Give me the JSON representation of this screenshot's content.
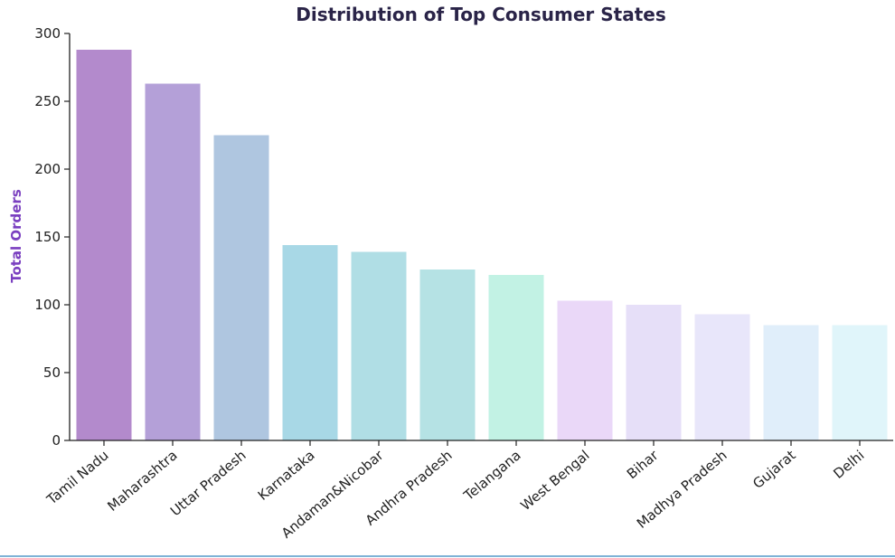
{
  "chart_data": {
    "type": "bar",
    "title": "Distribution of Top Consumer States",
    "xlabel": "",
    "ylabel": "Total Orders",
    "ylim": [
      0,
      300
    ],
    "yticks": [
      0,
      50,
      100,
      150,
      200,
      250,
      300
    ],
    "categories": [
      "Tamil Nadu",
      "Maharashtra",
      "Uttar Pradesh",
      "Karnataka",
      "Andaman&Nicobar",
      "Andhra Pradesh",
      "Telangana",
      "West Bengal",
      "Bihar",
      "Madhya Pradesh",
      "Gujarat",
      "Delhi"
    ],
    "values": [
      288,
      263,
      225,
      144,
      139,
      126,
      122,
      103,
      100,
      93,
      85,
      85
    ],
    "colors": [
      "#b38acc",
      "#b4a0d8",
      "#afc6e0",
      "#a8d8e6",
      "#b0dee5",
      "#b5e2e4",
      "#c2f2e4",
      "#ead8f8",
      "#e6dff8",
      "#e8e6fa",
      "#e0eefa",
      "#e0f5fa"
    ],
    "grid": false,
    "legend": "none"
  }
}
